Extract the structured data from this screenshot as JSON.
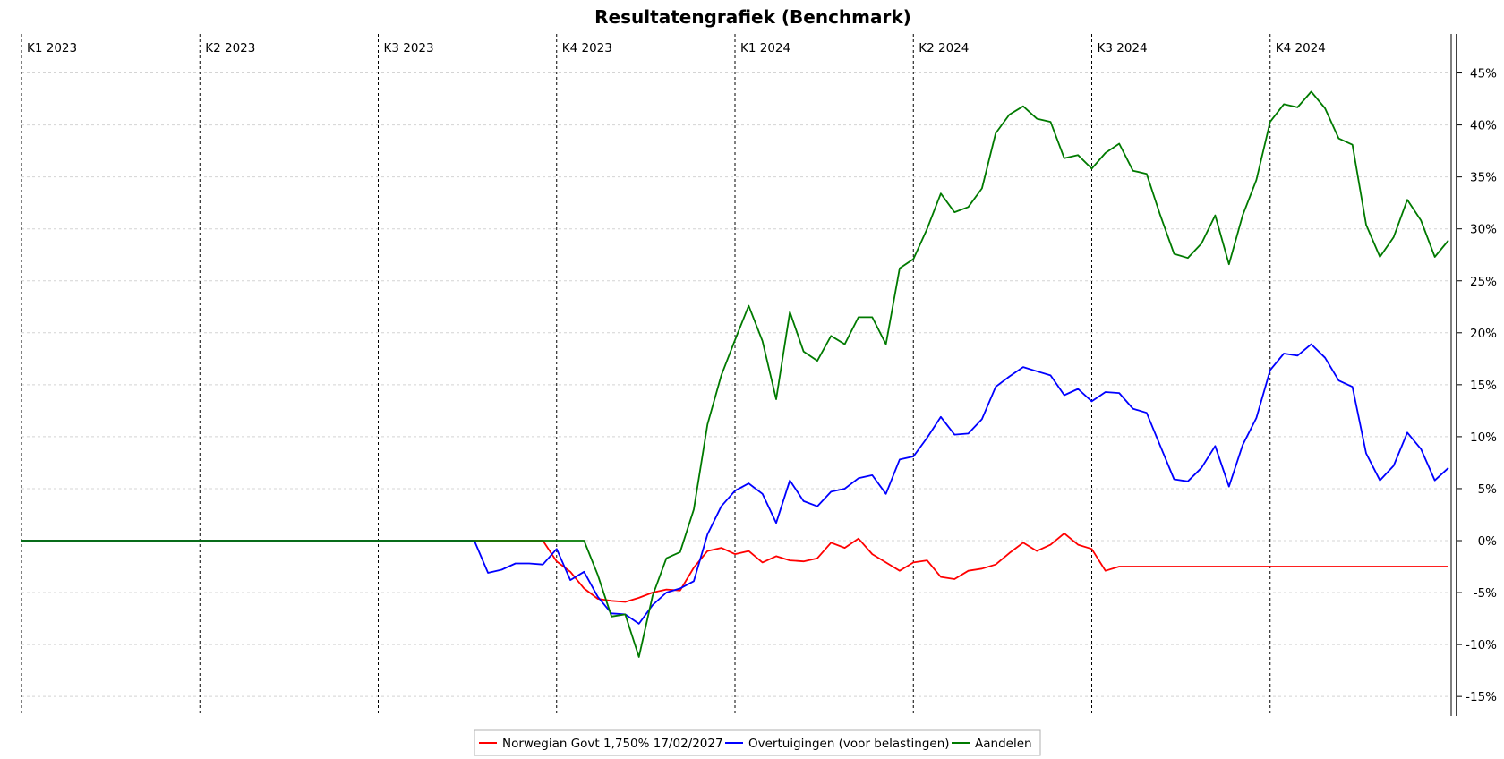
{
  "chart_data": {
    "type": "line",
    "title": "Resultatengrafiek (Benchmark)",
    "xlabel": "",
    "ylabel": "",
    "ylim": [
      -17,
      47
    ],
    "yticks": [
      -15,
      -10,
      -5,
      0,
      5,
      10,
      15,
      20,
      25,
      30,
      35,
      40,
      45
    ],
    "ytick_labels": [
      "-15%",
      "-10%",
      "-5%",
      "0%",
      "5%",
      "10%",
      "15%",
      "20%",
      "25%",
      "30%",
      "35%",
      "40%",
      "45%"
    ],
    "grid": true,
    "legend_position": "bottom-center",
    "quarters": [
      {
        "label": "K1 2023",
        "week": 0
      },
      {
        "label": "K2 2023",
        "week": 13
      },
      {
        "label": "K3 2023",
        "week": 26
      },
      {
        "label": "K4 2023",
        "week": 39
      },
      {
        "label": "K1 2024",
        "week": 52
      },
      {
        "label": "K2 2024",
        "week": 65
      },
      {
        "label": "K3 2024",
        "week": 78
      },
      {
        "label": "K4 2024",
        "week": 91
      }
    ],
    "x": [
      0,
      1,
      2,
      3,
      4,
      5,
      6,
      7,
      8,
      9,
      10,
      11,
      12,
      13,
      14,
      15,
      16,
      17,
      18,
      19,
      20,
      21,
      22,
      23,
      24,
      25,
      26,
      27,
      28,
      29,
      30,
      31,
      32,
      33,
      34,
      35,
      36,
      37,
      38,
      39,
      40,
      41,
      42,
      43,
      44,
      45,
      46,
      47,
      48,
      49,
      50,
      51,
      52,
      53,
      54,
      55,
      56,
      57,
      58,
      59,
      60,
      61,
      62,
      63,
      64,
      65,
      66,
      67,
      68,
      69,
      70,
      71,
      72,
      73,
      74,
      75,
      76,
      77,
      78,
      79,
      80,
      81,
      82,
      83,
      84,
      85,
      86,
      87,
      88,
      89,
      90,
      91,
      92,
      93,
      94,
      95,
      96,
      97,
      98,
      99,
      100,
      101,
      102,
      103,
      104
    ],
    "series": [
      {
        "name": "Norwegian Govt 1,750% 17/02/2027",
        "color": "#ff0000",
        "values": [
          0,
          0,
          0,
          0,
          0,
          0,
          0,
          0,
          0,
          0,
          0,
          0,
          0,
          0,
          0,
          0,
          0,
          0,
          0,
          0,
          0,
          0,
          0,
          0,
          0,
          0,
          0,
          0,
          0,
          0,
          0,
          0,
          0,
          0,
          0,
          0,
          0,
          0,
          0,
          -2.0,
          -3.0,
          -4.6,
          -5.6,
          -5.8,
          -5.9,
          -5.5,
          -5.0,
          -4.7,
          -4.8,
          -2.6,
          -1.0,
          -0.7,
          -1.3,
          -1.0,
          -2.1,
          -1.5,
          -1.9,
          -2.0,
          -1.7,
          -0.2,
          -0.7,
          0.2,
          -1.3,
          -2.1,
          -2.9,
          -2.1,
          -1.9,
          -3.5,
          -3.7,
          -2.9,
          -2.7,
          -2.3,
          -1.2,
          -0.2,
          -1.0,
          -0.4,
          0.7,
          -0.4,
          -0.8,
          -2.9,
          -2.5,
          -2.5,
          -2.5,
          -2.5,
          -2.5,
          -2.5,
          -2.5,
          -2.5,
          -2.5,
          -2.5,
          -2.5,
          -2.5,
          -2.5,
          -2.5,
          -2.5,
          -2.5,
          -2.5,
          -2.5,
          -2.5,
          -2.5,
          -2.5,
          -2.5,
          -2.5,
          -2.5,
          -2.5
        ]
      },
      {
        "name": "Overtuigingen (voor belastingen)",
        "color": "#0000ff",
        "values": [
          0,
          0,
          0,
          0,
          0,
          0,
          0,
          0,
          0,
          0,
          0,
          0,
          0,
          0,
          0,
          0,
          0,
          0,
          0,
          0,
          0,
          0,
          0,
          0,
          0,
          0,
          0,
          0,
          0,
          0,
          0,
          0,
          0,
          0,
          -3.1,
          -2.8,
          -2.2,
          -2.2,
          -2.3,
          -0.8,
          -3.8,
          -3.0,
          -5.4,
          -7.0,
          -7.1,
          -8.0,
          -6.2,
          -5.0,
          -4.6,
          -3.9,
          0.6,
          3.3,
          4.8,
          5.5,
          4.5,
          1.7,
          5.8,
          3.8,
          3.3,
          4.7,
          5.0,
          6.0,
          6.3,
          4.5,
          7.8,
          8.1,
          9.9,
          11.9,
          10.2,
          10.3,
          11.7,
          14.8,
          15.8,
          16.7,
          16.3,
          15.9,
          14.0,
          14.6,
          13.4,
          14.3,
          14.2,
          12.7,
          12.3,
          9.1,
          5.9,
          5.7,
          7.0,
          9.1,
          5.2,
          9.2,
          11.8,
          16.4,
          18.0,
          17.8,
          18.9,
          17.6,
          15.4,
          14.8,
          8.4,
          5.8,
          7.2,
          10.4,
          8.8,
          5.8,
          7.0
        ]
      },
      {
        "name": "Aandelen",
        "color": "#007a00",
        "values": [
          0,
          0,
          0,
          0,
          0,
          0,
          0,
          0,
          0,
          0,
          0,
          0,
          0,
          0,
          0,
          0,
          0,
          0,
          0,
          0,
          0,
          0,
          0,
          0,
          0,
          0,
          0,
          0,
          0,
          0,
          0,
          0,
          0,
          0,
          0,
          0,
          0,
          0,
          0,
          0,
          0,
          0,
          -3.3,
          -7.3,
          -7.1,
          -11.2,
          -5.3,
          -1.7,
          -1.1,
          3.0,
          11.2,
          15.9,
          19.3,
          22.6,
          19.2,
          13.6,
          22.0,
          18.2,
          17.3,
          19.7,
          18.9,
          21.5,
          21.5,
          18.9,
          26.2,
          27.1,
          30.0,
          33.4,
          31.6,
          32.1,
          33.9,
          39.2,
          41.0,
          41.8,
          40.6,
          40.3,
          36.8,
          37.1,
          35.8,
          37.3,
          38.2,
          35.6,
          35.3,
          31.3,
          27.6,
          27.2,
          28.6,
          31.3,
          26.6,
          31.3,
          34.7,
          40.3,
          42.0,
          41.7,
          43.2,
          41.6,
          38.7,
          38.1,
          30.4,
          27.3,
          29.2,
          32.8,
          30.8,
          27.3,
          28.9
        ]
      }
    ]
  }
}
